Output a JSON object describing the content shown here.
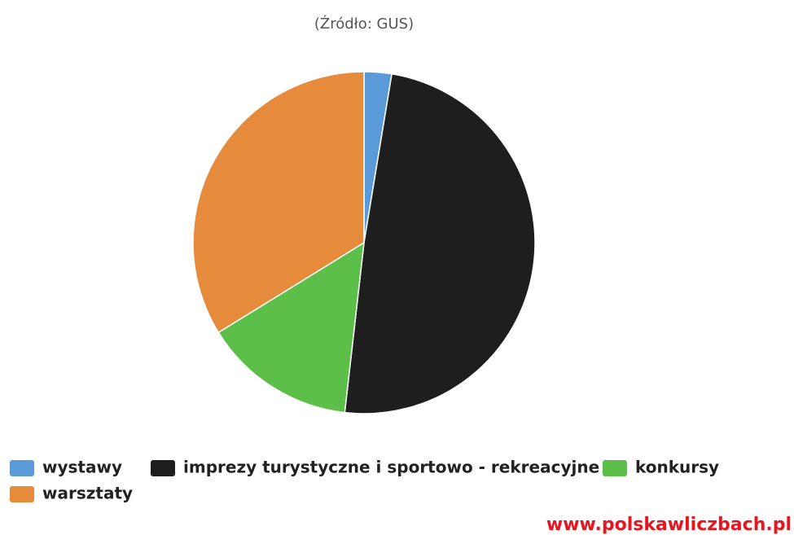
{
  "chart_data": {
    "type": "pie",
    "subtitle": "(Źródło: GUS)",
    "categories": [
      "wystawy",
      "imprezy turystyczne i sportowo - rekreacyjne",
      "konkursy",
      "warsztaty"
    ],
    "values": [
      2.6,
      49.2,
      14.4,
      33.8
    ],
    "colors": [
      "#5b9ad8",
      "#1e1e1e",
      "#5cbf4a",
      "#e68a3c"
    ],
    "watermark": "www.polskawliczbach.pl"
  }
}
